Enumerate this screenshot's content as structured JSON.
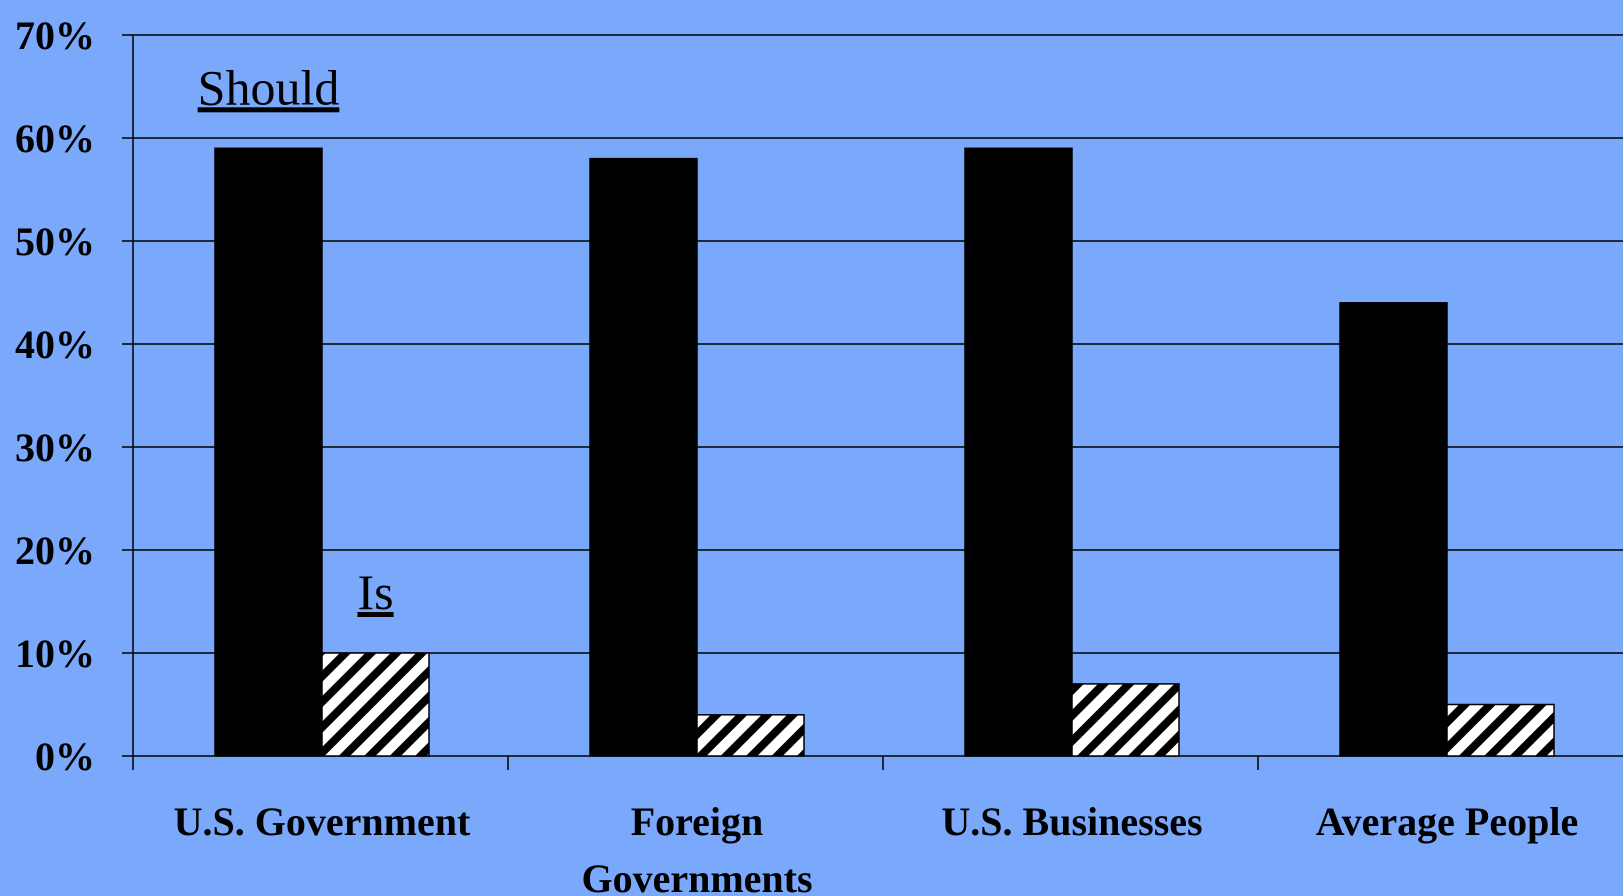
{
  "chart_data": {
    "type": "bar",
    "categories": [
      [
        "U.S. Government"
      ],
      [
        "Foreign",
        "Governments"
      ],
      [
        "U.S. Businesses"
      ],
      [
        "Average People"
      ]
    ],
    "series": [
      {
        "name": "Should",
        "values": [
          59,
          58,
          59,
          44
        ],
        "fill": "#000000",
        "pattern": "solid"
      },
      {
        "name": "Is",
        "values": [
          10,
          4,
          7,
          5
        ],
        "fill": "#ffffff",
        "pattern": "diagonal-hatch"
      }
    ],
    "annotations": [
      {
        "text": "Should",
        "series": "Should",
        "category_index": 0
      },
      {
        "text": "Is",
        "series": "Is",
        "category_index": 0
      }
    ],
    "ylim": [
      0,
      70
    ],
    "yticks": [
      0,
      10,
      20,
      30,
      40,
      50,
      60,
      70
    ],
    "ytick_labels": [
      "0%",
      "10%",
      "20%",
      "30%",
      "40%",
      "50%",
      "60%",
      "70%"
    ],
    "grid": true,
    "legend": "none",
    "colors": {
      "background": "#7aa8fb",
      "gridline": "#000000"
    }
  }
}
